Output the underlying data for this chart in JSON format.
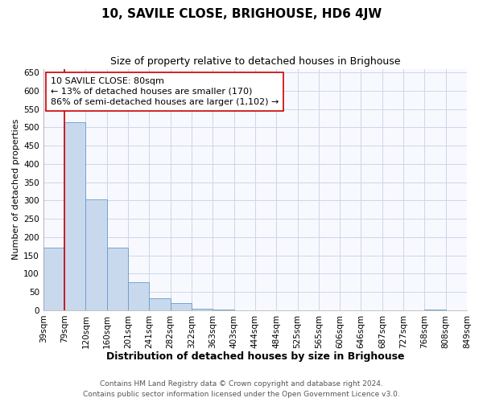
{
  "title": "10, SAVILE CLOSE, BRIGHOUSE, HD6 4JW",
  "subtitle": "Size of property relative to detached houses in Brighouse",
  "xlabel": "Distribution of detached houses by size in Brighouse",
  "ylabel": "Number of detached properties",
  "bar_values": [
    170,
    515,
    302,
    170,
    76,
    32,
    19,
    5,
    1,
    0,
    0,
    0,
    0,
    0,
    0,
    0,
    0,
    0,
    2,
    0
  ],
  "bin_labels": [
    "39sqm",
    "79sqm",
    "120sqm",
    "160sqm",
    "201sqm",
    "241sqm",
    "282sqm",
    "322sqm",
    "363sqm",
    "403sqm",
    "444sqm",
    "484sqm",
    "525sqm",
    "565sqm",
    "606sqm",
    "646sqm",
    "687sqm",
    "727sqm",
    "768sqm",
    "808sqm",
    "849sqm"
  ],
  "bar_color": "#c9d9ed",
  "bar_edge_color": "#6699cc",
  "vline_color": "#cc0000",
  "annotation_text": "10 SAVILE CLOSE: 80sqm\n← 13% of detached houses are smaller (170)\n86% of semi-detached houses are larger (1,102) →",
  "annotation_box_color": "#ffffff",
  "annotation_box_edge": "#cc0000",
  "ylim": [
    0,
    660
  ],
  "yticks": [
    0,
    50,
    100,
    150,
    200,
    250,
    300,
    350,
    400,
    450,
    500,
    550,
    600,
    650
  ],
  "grid_color": "#ccd5e8",
  "footer_line1": "Contains HM Land Registry data © Crown copyright and database right 2024.",
  "footer_line2": "Contains public sector information licensed under the Open Government Licence v3.0.",
  "title_fontsize": 11,
  "subtitle_fontsize": 9,
  "xlabel_fontsize": 9,
  "ylabel_fontsize": 8,
  "tick_fontsize": 7.5,
  "footer_fontsize": 6.5,
  "annotation_fontsize": 8
}
